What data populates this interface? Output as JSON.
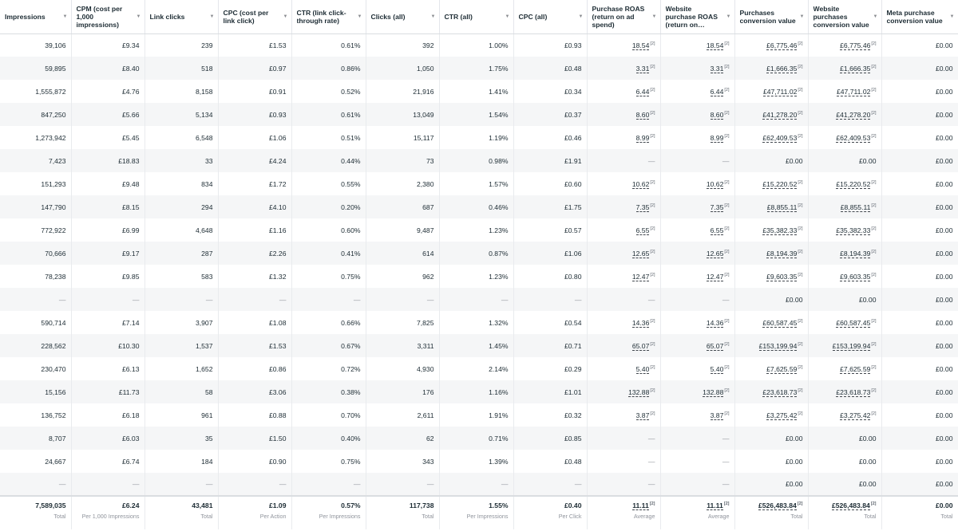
{
  "columns": [
    {
      "label": "Impressions"
    },
    {
      "label": "CPM (cost per 1,000 impressions)"
    },
    {
      "label": "Link clicks"
    },
    {
      "label": "CPC (cost per link click)"
    },
    {
      "label": "CTR (link click-through rate)"
    },
    {
      "label": "Clicks (all)"
    },
    {
      "label": "CTR (all)"
    },
    {
      "label": "CPC (all)"
    },
    {
      "label": "Purchase ROAS (return on ad spend)"
    },
    {
      "label": "Website purchase ROAS (return on…"
    },
    {
      "label": "Purchases conversion value"
    },
    {
      "label": "Website purchases conversion value"
    },
    {
      "label": "Meta purchase conversion value"
    }
  ],
  "rows": [
    [
      "39,106",
      "£9.34",
      "239",
      "£1.53",
      "0.61%",
      "392",
      "1.00%",
      "£0.93",
      "18.54",
      "18.54",
      "£6,775.46",
      "£6,775.46",
      "£0.00"
    ],
    [
      "59,895",
      "£8.40",
      "518",
      "£0.97",
      "0.86%",
      "1,050",
      "1.75%",
      "£0.48",
      "3.31",
      "3.31",
      "£1,666.35",
      "£1,666.35",
      "£0.00"
    ],
    [
      "1,555,872",
      "£4.76",
      "8,158",
      "£0.91",
      "0.52%",
      "21,916",
      "1.41%",
      "£0.34",
      "6.44",
      "6.44",
      "£47,711.02",
      "£47,711.02",
      "£0.00"
    ],
    [
      "847,250",
      "£5.66",
      "5,134",
      "£0.93",
      "0.61%",
      "13,049",
      "1.54%",
      "£0.37",
      "8.60",
      "8.60",
      "£41,278.20",
      "£41,278.20",
      "£0.00"
    ],
    [
      "1,273,942",
      "£5.45",
      "6,548",
      "£1.06",
      "0.51%",
      "15,117",
      "1.19%",
      "£0.46",
      "8.99",
      "8.99",
      "£62,409.53",
      "£62,409.53",
      "£0.00"
    ],
    [
      "7,423",
      "£18.83",
      "33",
      "£4.24",
      "0.44%",
      "73",
      "0.98%",
      "£1.91",
      "—",
      "—",
      "£0.00",
      "£0.00",
      "£0.00"
    ],
    [
      "151,293",
      "£9.48",
      "834",
      "£1.72",
      "0.55%",
      "2,380",
      "1.57%",
      "£0.60",
      "10.62",
      "10.62",
      "£15,220.52",
      "£15,220.52",
      "£0.00"
    ],
    [
      "147,790",
      "£8.15",
      "294",
      "£4.10",
      "0.20%",
      "687",
      "0.46%",
      "£1.75",
      "7.35",
      "7.35",
      "£8,855.11",
      "£8,855.11",
      "£0.00"
    ],
    [
      "772,922",
      "£6.99",
      "4,648",
      "£1.16",
      "0.60%",
      "9,487",
      "1.23%",
      "£0.57",
      "6.55",
      "6.55",
      "£35,382.33",
      "£35,382.33",
      "£0.00"
    ],
    [
      "70,666",
      "£9.17",
      "287",
      "£2.26",
      "0.41%",
      "614",
      "0.87%",
      "£1.06",
      "12.65",
      "12.65",
      "£8,194.39",
      "£8,194.39",
      "£0.00"
    ],
    [
      "78,238",
      "£9.85",
      "583",
      "£1.32",
      "0.75%",
      "962",
      "1.23%",
      "£0.80",
      "12.47",
      "12.47",
      "£9,603.35",
      "£9,603.35",
      "£0.00"
    ],
    [
      "—",
      "—",
      "—",
      "—",
      "—",
      "—",
      "—",
      "—",
      "—",
      "—",
      "£0.00",
      "£0.00",
      "£0.00"
    ],
    [
      "590,714",
      "£7.14",
      "3,907",
      "£1.08",
      "0.66%",
      "7,825",
      "1.32%",
      "£0.54",
      "14.36",
      "14.36",
      "£60,587.45",
      "£60,587.45",
      "£0.00"
    ],
    [
      "228,562",
      "£10.30",
      "1,537",
      "£1.53",
      "0.67%",
      "3,311",
      "1.45%",
      "£0.71",
      "65.07",
      "65.07",
      "£153,199.94",
      "£153,199.94",
      "£0.00"
    ],
    [
      "230,470",
      "£6.13",
      "1,652",
      "£0.86",
      "0.72%",
      "4,930",
      "2.14%",
      "£0.29",
      "5.40",
      "5.40",
      "£7,625.59",
      "£7,625.59",
      "£0.00"
    ],
    [
      "15,156",
      "£11.73",
      "58",
      "£3.06",
      "0.38%",
      "176",
      "1.16%",
      "£1.01",
      "132.88",
      "132.88",
      "£23,618.73",
      "£23,618.73",
      "£0.00"
    ],
    [
      "136,752",
      "£6.18",
      "961",
      "£0.88",
      "0.70%",
      "2,611",
      "1.91%",
      "£0.32",
      "3.87",
      "3.87",
      "£3,275.42",
      "£3,275.42",
      "£0.00"
    ],
    [
      "8,707",
      "£6.03",
      "35",
      "£1.50",
      "0.40%",
      "62",
      "0.71%",
      "£0.85",
      "—",
      "—",
      "£0.00",
      "£0.00",
      "£0.00"
    ],
    [
      "24,667",
      "£6.74",
      "184",
      "£0.90",
      "0.75%",
      "343",
      "1.39%",
      "£0.48",
      "—",
      "—",
      "£0.00",
      "£0.00",
      "£0.00"
    ],
    [
      "—",
      "—",
      "—",
      "—",
      "—",
      "—",
      "—",
      "—",
      "—",
      "—",
      "£0.00",
      "£0.00",
      "£0.00"
    ]
  ],
  "footnote_marker": "[2]",
  "footnote_columns": [
    8,
    9,
    10,
    11
  ],
  "totals": [
    {
      "value": "7,589,035",
      "label": "Total"
    },
    {
      "value": "£6.24",
      "label": "Per 1,000 Impressions"
    },
    {
      "value": "43,481",
      "label": "Total"
    },
    {
      "value": "£1.09",
      "label": "Per Action"
    },
    {
      "value": "0.57%",
      "label": "Per Impressions"
    },
    {
      "value": "117,738",
      "label": "Total"
    },
    {
      "value": "1.55%",
      "label": "Per Impressions"
    },
    {
      "value": "£0.40",
      "label": "Per Click"
    },
    {
      "value": "11.11",
      "label": "Average"
    },
    {
      "value": "11.11",
      "label": "Average"
    },
    {
      "value": "£526,483.84",
      "label": "Total"
    },
    {
      "value": "£526,483.84",
      "label": "Total"
    },
    {
      "value": "£0.00",
      "label": "Total"
    }
  ],
  "icons": {
    "sort": "sort-arrow-icon"
  }
}
